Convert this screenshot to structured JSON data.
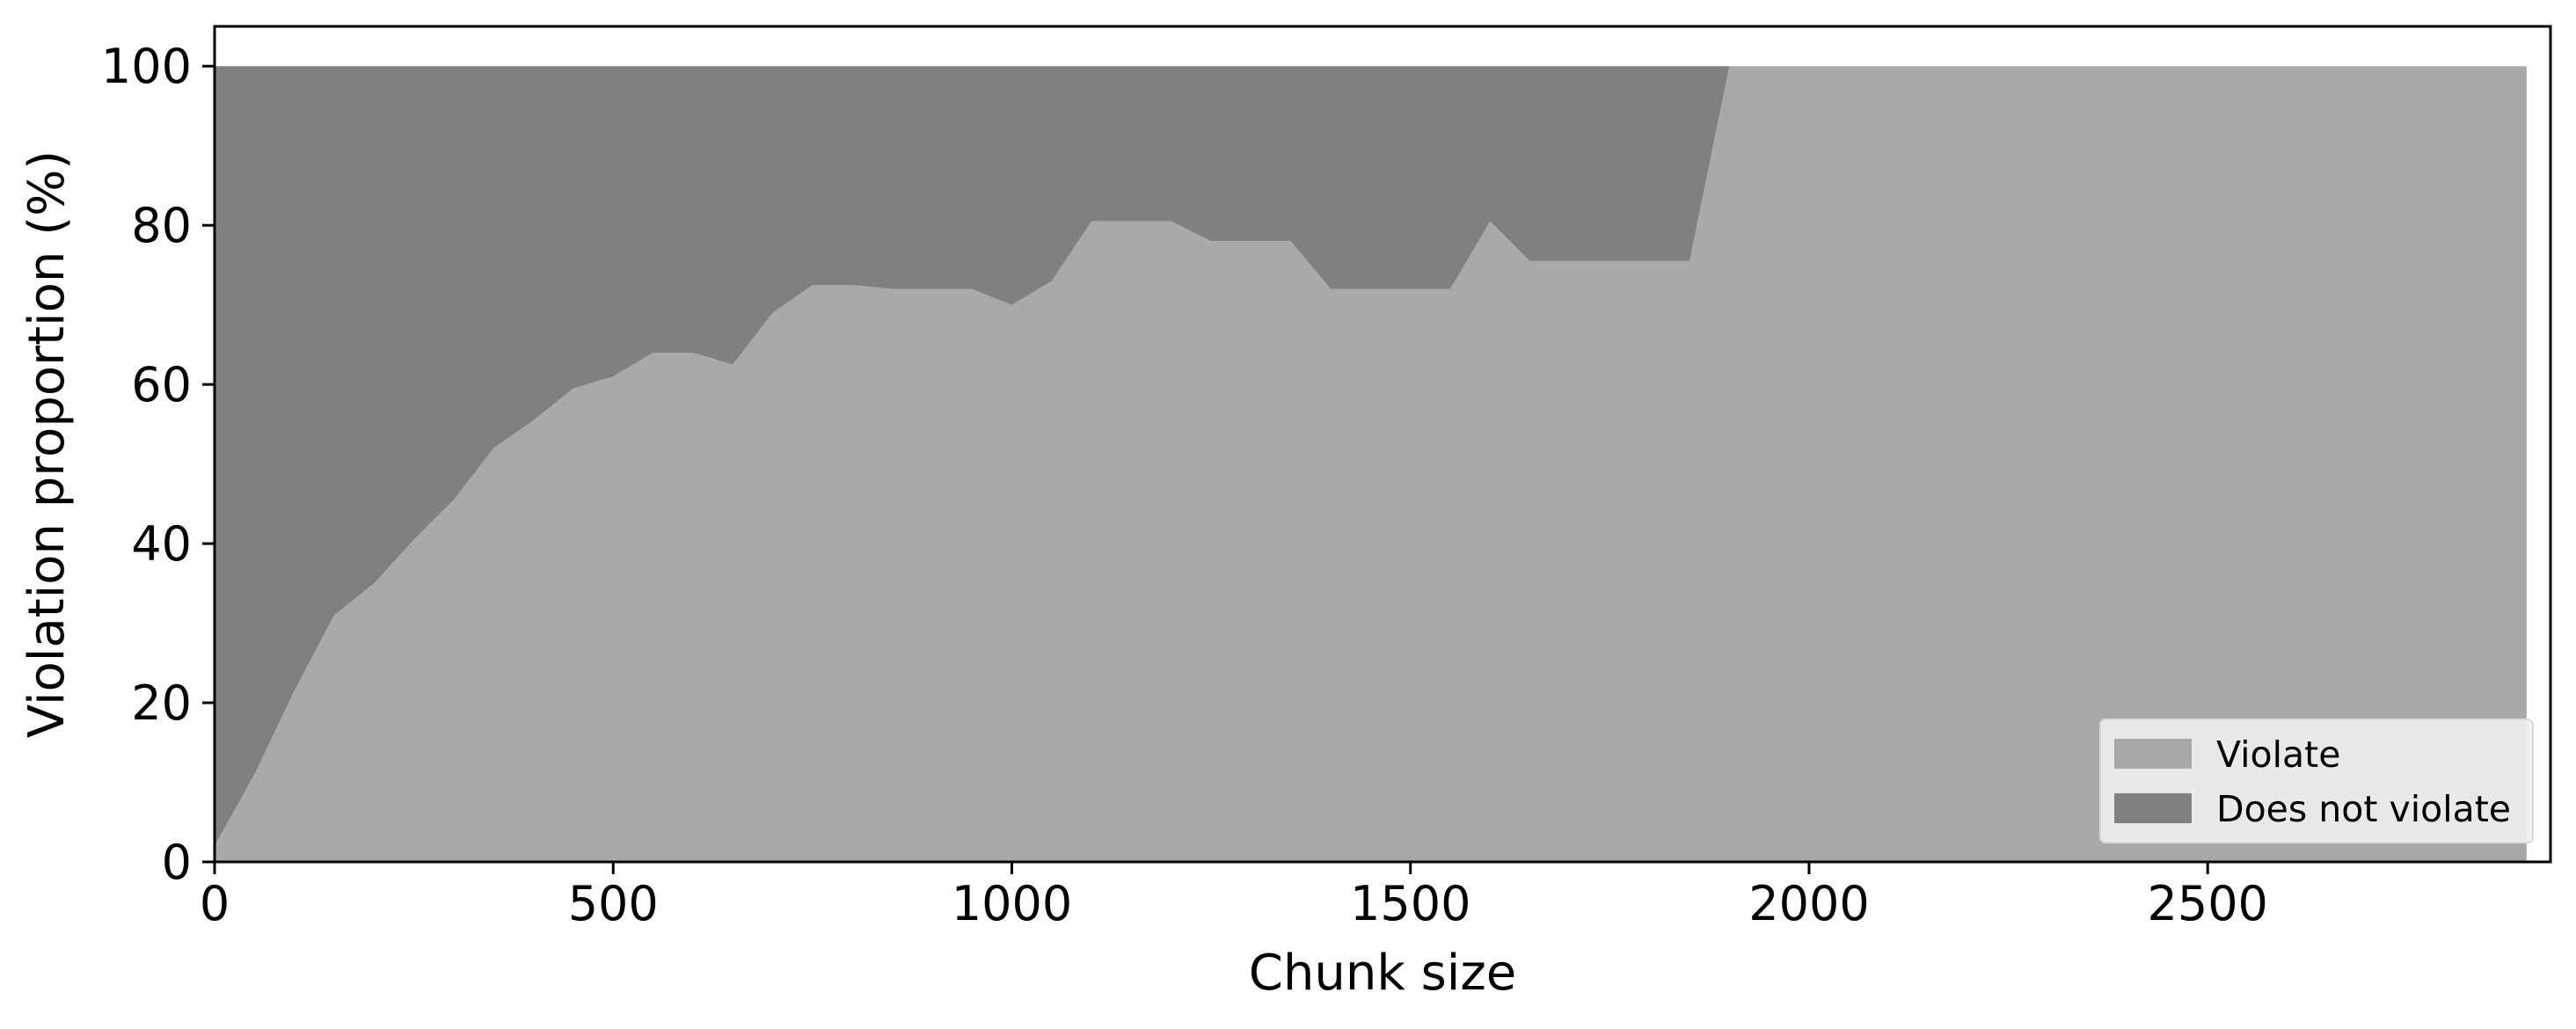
{
  "chart_data": {
    "type": "area",
    "stacked": true,
    "xlabel": "Chunk size",
    "ylabel": "Violation proportion (%)",
    "xlim": [
      0,
      2930
    ],
    "ylim": [
      0,
      105
    ],
    "xticks": [
      0,
      500,
      1000,
      1500,
      2000,
      2500
    ],
    "yticks": [
      0,
      20,
      40,
      60,
      80,
      100
    ],
    "grid": false,
    "legend_position": "lower-right",
    "x": [
      0,
      50,
      100,
      150,
      200,
      250,
      300,
      350,
      400,
      450,
      500,
      550,
      600,
      650,
      700,
      750,
      800,
      850,
      900,
      950,
      1000,
      1050,
      1100,
      1150,
      1200,
      1250,
      1300,
      1350,
      1400,
      1450,
      1500,
      1550,
      1600,
      1650,
      1700,
      1750,
      1800,
      1850,
      1900,
      1950,
      2000,
      2050,
      2100,
      2150,
      2200,
      2250,
      2300,
      2350,
      2400,
      2450,
      2500,
      2550,
      2600,
      2650,
      2700,
      2750,
      2800,
      2850,
      2900
    ],
    "series": [
      {
        "name": "Violate",
        "color": "#a9a9a9",
        "values": [
          2,
          11,
          21.5,
          31,
          35,
          40.5,
          45.5,
          52,
          55.5,
          59.5,
          61,
          64,
          64,
          62.5,
          69,
          72.5,
          72.5,
          72,
          72,
          72,
          70,
          73,
          80.5,
          80.5,
          80.5,
          78,
          78,
          78,
          72,
          72,
          72,
          72,
          80.5,
          75.5,
          75.5,
          75.5,
          75.5,
          75.5,
          100,
          100,
          100,
          100,
          100,
          100,
          100,
          100,
          100,
          100,
          100,
          100,
          100,
          100,
          100,
          100,
          100,
          100,
          100,
          100,
          100
        ]
      },
      {
        "name": "Does not violate",
        "color": "#808080",
        "values": [
          98,
          89,
          78.5,
          69,
          65,
          59.5,
          54.5,
          48,
          44.5,
          40.5,
          39,
          36,
          36,
          37.5,
          31,
          27.5,
          27.5,
          28,
          28,
          28,
          30,
          27,
          19.5,
          19.5,
          19.5,
          22,
          22,
          22,
          28,
          28,
          28,
          28,
          19.5,
          24.5,
          24.5,
          24.5,
          24.5,
          24.5,
          0,
          0,
          0,
          0,
          0,
          0,
          0,
          0,
          0,
          0,
          0,
          0,
          0,
          0,
          0,
          0,
          0,
          0,
          0,
          0,
          0
        ]
      }
    ]
  }
}
